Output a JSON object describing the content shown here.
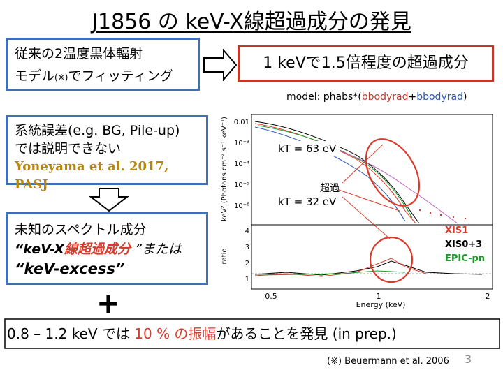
{
  "title": "J1856 の keV-X線超過成分の発見",
  "box1": {
    "line1": "従来の2温度黒体輻射",
    "line2a": "モデル",
    "line2_note": "(※)",
    "line2b": "でフィッティング"
  },
  "box2": {
    "text": "1 keVで1.5倍程度の超過成分"
  },
  "model": {
    "prefix": "model: phabs*(",
    "comp1": "bbodyrad",
    "plus": "+",
    "comp2": "bbodyrad",
    "suffix": ")"
  },
  "box3": {
    "line1": "系統誤差(e.g. BG, Pile-up)",
    "line2": "では説明できない",
    "ref": "Yoneyama et al. 2017, PASJ"
  },
  "box4": {
    "line1": "未知のスペクトル成分",
    "line2a": "“keV-X",
    "line2b": "線超過成分",
    "line2c": " ”または",
    "line3": "“keV-excess”"
  },
  "plot": {
    "ylabel_top": "keV² (Photons cm⁻² s⁻¹ keV⁻¹)",
    "ylabel_bottom": "ratio",
    "xlabel": "Energy (keV)",
    "yticks_top": [
      "0.01",
      "10⁻³",
      "10⁻⁴",
      "10⁻⁵",
      "10⁻⁶"
    ],
    "yticks_bottom": [
      "4",
      "3",
      "2",
      "1"
    ],
    "xticks": [
      "0.5",
      "1",
      "2"
    ],
    "kt1": "kT = 63 eV",
    "kt2": "kT = 32 eV",
    "excess_label": "超過",
    "legend": [
      {
        "name": "XIS1",
        "color": "#d93a2b"
      },
      {
        "name": "XIS0+3",
        "color": "#000000"
      },
      {
        "name": "EPIC-pn",
        "color": "#1a9a2a"
      }
    ]
  },
  "bottom": {
    "pre": "0.8 – 1.2 keV では ",
    "highlight": "10 % の振幅",
    "post": "があることを発見 (in prep.)"
  },
  "plus_sign": "+",
  "note": "(※) Beuermann et al. 2006",
  "page_number": "3"
}
